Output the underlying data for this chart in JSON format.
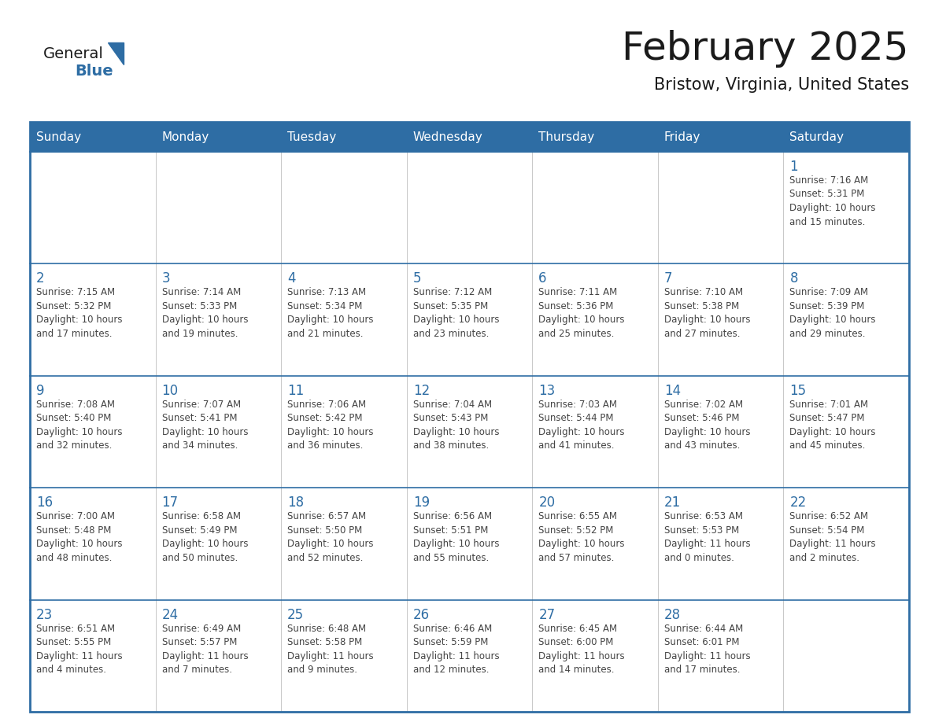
{
  "title": "February 2025",
  "subtitle": "Bristow, Virginia, United States",
  "header_bg": "#2E6DA4",
  "header_text_color": "#FFFFFF",
  "border_color": "#2E6DA4",
  "row_divider_color": "#2E6DA4",
  "day_headers": [
    "Sunday",
    "Monday",
    "Tuesday",
    "Wednesday",
    "Thursday",
    "Friday",
    "Saturday"
  ],
  "title_color": "#1a1a1a",
  "subtitle_color": "#1a1a1a",
  "day_num_color": "#2E6DA4",
  "cell_text_color": "#444444",
  "cell_bg": "#FFFFFF",
  "logo_general_color": "#1a1a1a",
  "logo_blue_color": "#2E6DA4",
  "logo_triangle_color": "#2E6DA4",
  "calendar_data": [
    [
      null,
      null,
      null,
      null,
      null,
      null,
      {
        "day": 1,
        "lines": [
          "Sunrise: 7:16 AM",
          "Sunset: 5:31 PM",
          "Daylight: 10 hours",
          "and 15 minutes."
        ]
      }
    ],
    [
      {
        "day": 2,
        "lines": [
          "Sunrise: 7:15 AM",
          "Sunset: 5:32 PM",
          "Daylight: 10 hours",
          "and 17 minutes."
        ]
      },
      {
        "day": 3,
        "lines": [
          "Sunrise: 7:14 AM",
          "Sunset: 5:33 PM",
          "Daylight: 10 hours",
          "and 19 minutes."
        ]
      },
      {
        "day": 4,
        "lines": [
          "Sunrise: 7:13 AM",
          "Sunset: 5:34 PM",
          "Daylight: 10 hours",
          "and 21 minutes."
        ]
      },
      {
        "day": 5,
        "lines": [
          "Sunrise: 7:12 AM",
          "Sunset: 5:35 PM",
          "Daylight: 10 hours",
          "and 23 minutes."
        ]
      },
      {
        "day": 6,
        "lines": [
          "Sunrise: 7:11 AM",
          "Sunset: 5:36 PM",
          "Daylight: 10 hours",
          "and 25 minutes."
        ]
      },
      {
        "day": 7,
        "lines": [
          "Sunrise: 7:10 AM",
          "Sunset: 5:38 PM",
          "Daylight: 10 hours",
          "and 27 minutes."
        ]
      },
      {
        "day": 8,
        "lines": [
          "Sunrise: 7:09 AM",
          "Sunset: 5:39 PM",
          "Daylight: 10 hours",
          "and 29 minutes."
        ]
      }
    ],
    [
      {
        "day": 9,
        "lines": [
          "Sunrise: 7:08 AM",
          "Sunset: 5:40 PM",
          "Daylight: 10 hours",
          "and 32 minutes."
        ]
      },
      {
        "day": 10,
        "lines": [
          "Sunrise: 7:07 AM",
          "Sunset: 5:41 PM",
          "Daylight: 10 hours",
          "and 34 minutes."
        ]
      },
      {
        "day": 11,
        "lines": [
          "Sunrise: 7:06 AM",
          "Sunset: 5:42 PM",
          "Daylight: 10 hours",
          "and 36 minutes."
        ]
      },
      {
        "day": 12,
        "lines": [
          "Sunrise: 7:04 AM",
          "Sunset: 5:43 PM",
          "Daylight: 10 hours",
          "and 38 minutes."
        ]
      },
      {
        "day": 13,
        "lines": [
          "Sunrise: 7:03 AM",
          "Sunset: 5:44 PM",
          "Daylight: 10 hours",
          "and 41 minutes."
        ]
      },
      {
        "day": 14,
        "lines": [
          "Sunrise: 7:02 AM",
          "Sunset: 5:46 PM",
          "Daylight: 10 hours",
          "and 43 minutes."
        ]
      },
      {
        "day": 15,
        "lines": [
          "Sunrise: 7:01 AM",
          "Sunset: 5:47 PM",
          "Daylight: 10 hours",
          "and 45 minutes."
        ]
      }
    ],
    [
      {
        "day": 16,
        "lines": [
          "Sunrise: 7:00 AM",
          "Sunset: 5:48 PM",
          "Daylight: 10 hours",
          "and 48 minutes."
        ]
      },
      {
        "day": 17,
        "lines": [
          "Sunrise: 6:58 AM",
          "Sunset: 5:49 PM",
          "Daylight: 10 hours",
          "and 50 minutes."
        ]
      },
      {
        "day": 18,
        "lines": [
          "Sunrise: 6:57 AM",
          "Sunset: 5:50 PM",
          "Daylight: 10 hours",
          "and 52 minutes."
        ]
      },
      {
        "day": 19,
        "lines": [
          "Sunrise: 6:56 AM",
          "Sunset: 5:51 PM",
          "Daylight: 10 hours",
          "and 55 minutes."
        ]
      },
      {
        "day": 20,
        "lines": [
          "Sunrise: 6:55 AM",
          "Sunset: 5:52 PM",
          "Daylight: 10 hours",
          "and 57 minutes."
        ]
      },
      {
        "day": 21,
        "lines": [
          "Sunrise: 6:53 AM",
          "Sunset: 5:53 PM",
          "Daylight: 11 hours",
          "and 0 minutes."
        ]
      },
      {
        "day": 22,
        "lines": [
          "Sunrise: 6:52 AM",
          "Sunset: 5:54 PM",
          "Daylight: 11 hours",
          "and 2 minutes."
        ]
      }
    ],
    [
      {
        "day": 23,
        "lines": [
          "Sunrise: 6:51 AM",
          "Sunset: 5:55 PM",
          "Daylight: 11 hours",
          "and 4 minutes."
        ]
      },
      {
        "day": 24,
        "lines": [
          "Sunrise: 6:49 AM",
          "Sunset: 5:57 PM",
          "Daylight: 11 hours",
          "and 7 minutes."
        ]
      },
      {
        "day": 25,
        "lines": [
          "Sunrise: 6:48 AM",
          "Sunset: 5:58 PM",
          "Daylight: 11 hours",
          "and 9 minutes."
        ]
      },
      {
        "day": 26,
        "lines": [
          "Sunrise: 6:46 AM",
          "Sunset: 5:59 PM",
          "Daylight: 11 hours",
          "and 12 minutes."
        ]
      },
      {
        "day": 27,
        "lines": [
          "Sunrise: 6:45 AM",
          "Sunset: 6:00 PM",
          "Daylight: 11 hours",
          "and 14 minutes."
        ]
      },
      {
        "day": 28,
        "lines": [
          "Sunrise: 6:44 AM",
          "Sunset: 6:01 PM",
          "Daylight: 11 hours",
          "and 17 minutes."
        ]
      },
      null
    ]
  ]
}
